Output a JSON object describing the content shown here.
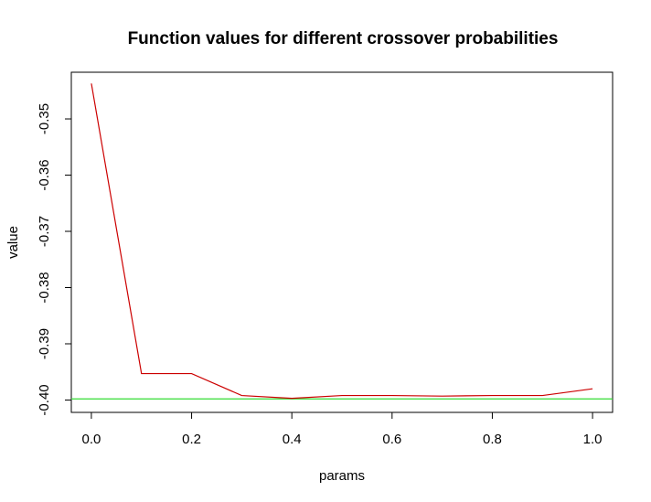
{
  "chart_data": {
    "type": "line",
    "title": "Function values for different crossover probabilities",
    "xlabel": "params",
    "ylabel": "value",
    "xlim": [
      -0.04,
      1.04
    ],
    "ylim": [
      -0.4022,
      -0.3417
    ],
    "x_ticks": [
      "0.0",
      "0.2",
      "0.4",
      "0.6",
      "0.8",
      "1.0"
    ],
    "y_ticks": [
      "-0.35",
      "-0.36",
      "-0.37",
      "-0.38",
      "-0.39",
      "-0.40"
    ],
    "grid": false,
    "series": [
      {
        "color": "#cc0000",
        "x": [
          0.0,
          0.1,
          0.2,
          0.3,
          0.4,
          0.5,
          0.6,
          0.7,
          0.8,
          0.9,
          1.0
        ],
        "values": [
          -0.3437,
          -0.3953,
          -0.3953,
          -0.3992,
          -0.3997,
          -0.3992,
          -0.3992,
          -0.3993,
          -0.3992,
          -0.3992,
          -0.398
        ]
      }
    ],
    "reference_line": {
      "y": -0.3998,
      "color": "#33dd33"
    }
  }
}
